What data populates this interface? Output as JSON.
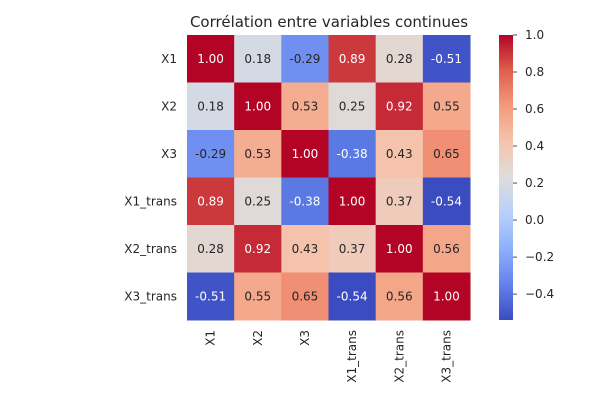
{
  "chart_data": {
    "type": "heatmap",
    "title": "Corrélation entre variables continues",
    "rows": [
      "X1",
      "X2",
      "X3",
      "X1_trans",
      "X2_trans",
      "X3_trans"
    ],
    "columns": [
      "X1",
      "X2",
      "X3",
      "X1_trans",
      "X2_trans",
      "X3_trans"
    ],
    "values": [
      [
        1.0,
        0.18,
        -0.29,
        0.89,
        0.28,
        -0.51
      ],
      [
        0.18,
        1.0,
        0.53,
        0.25,
        0.92,
        0.55
      ],
      [
        -0.29,
        0.53,
        1.0,
        -0.38,
        0.43,
        0.65
      ],
      [
        0.89,
        0.25,
        -0.38,
        1.0,
        0.37,
        -0.54
      ],
      [
        0.28,
        0.92,
        0.43,
        0.37,
        1.0,
        0.56
      ],
      [
        -0.51,
        0.55,
        0.65,
        -0.54,
        0.56,
        1.0
      ]
    ],
    "value_format": "2 decimals",
    "colormap": "coolwarm",
    "colorbar": {
      "range": [
        -0.54,
        1.0
      ],
      "ticks": [
        -0.4,
        -0.2,
        0.0,
        0.2,
        0.4,
        0.6,
        0.8,
        1.0
      ],
      "tick_labels": [
        "−0.4",
        "−0.2",
        "0.0",
        "0.2",
        "0.4",
        "0.6",
        "0.8",
        "1.0"
      ]
    },
    "grid": false
  }
}
